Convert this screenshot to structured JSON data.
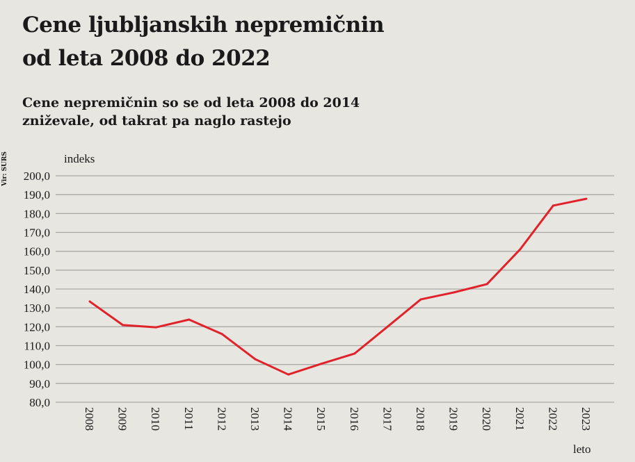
{
  "title_line1": "Cene ljubljanskih nepremičnin",
  "title_line2": "od leta 2008 do 2022",
  "subtitle_line1": "Cene nepremičnin so se od leta 2008 do 2014",
  "subtitle_line2": "zniževale, od takrat pa naglo rastejo",
  "source": "Vir: SURS",
  "colors": {
    "line": "#e0232b",
    "grid": "#a9a8a4",
    "background": "#e8e6e1"
  },
  "chart_data": {
    "type": "line",
    "title": "Cene ljubljanskih nepremičnin od leta 2008 do 2022",
    "xlabel": "leto",
    "ylabel": "indeks",
    "ylim": [
      80,
      200
    ],
    "yticks": [
      "80,0",
      "90,0",
      "100,0",
      "110,0",
      "120,0",
      "130,0",
      "140,0",
      "150,0",
      "160,0",
      "170,0",
      "180,0",
      "190,0",
      "200,0"
    ],
    "x": [
      "2008",
      "2009",
      "2010",
      "2011",
      "2012",
      "2013",
      "2014",
      "2015",
      "2016",
      "2017",
      "2018",
      "2019",
      "2020",
      "2021",
      "2022",
      "2023"
    ],
    "series": [
      {
        "name": "indeks",
        "values": [
          133.4,
          120.9,
          119.7,
          123.8,
          116.1,
          102.8,
          94.7,
          100.4,
          105.8,
          120.1,
          134.5,
          138.2,
          142.6,
          161.0,
          184.2,
          187.8
        ]
      }
    ],
    "grid": true
  }
}
